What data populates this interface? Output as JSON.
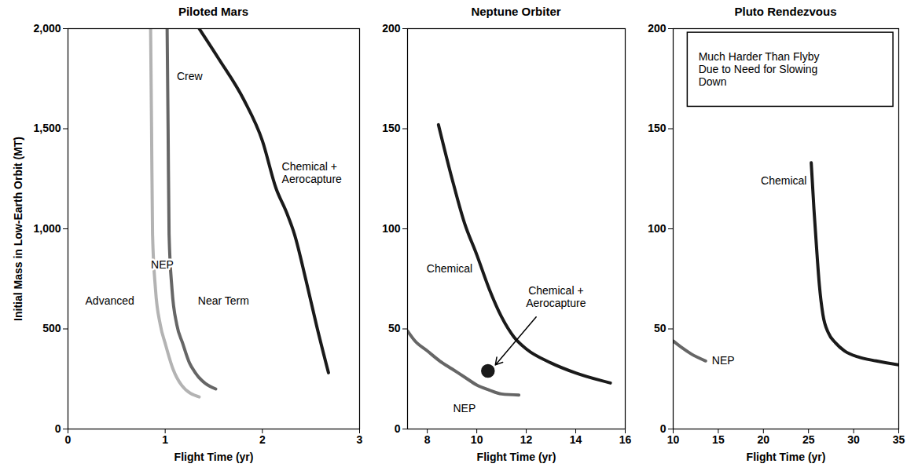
{
  "chart_data": [
    {
      "type": "line",
      "title": "Piloted Mars",
      "xlabel": "Flight Time (yr)",
      "ylabel": "Initial Mass in Low-Earth Orbit (MT)",
      "xlim": [
        0,
        3
      ],
      "xticks": [
        0,
        1,
        2,
        3
      ],
      "ylim": [
        0,
        2000
      ],
      "yticks": [
        0,
        500,
        {
          "value": 1000,
          "label": "1,000"
        },
        {
          "value": 1500,
          "label": "1,500"
        },
        {
          "value": 2000,
          "label": "2,000"
        }
      ],
      "series": [
        {
          "name": "Advanced",
          "color": "#b3b3b3",
          "x": [
            0.85,
            0.86,
            0.87,
            0.9,
            0.95,
            1.0,
            1.08,
            1.17,
            1.35
          ],
          "values": [
            2000,
            1500,
            973,
            700,
            520,
            428,
            300,
            218,
            160
          ]
        },
        {
          "name": "Near Term",
          "color": "#666666",
          "x": [
            1.02,
            1.03,
            1.04,
            1.07,
            1.12,
            1.18,
            1.25,
            1.31,
            1.52
          ],
          "values": [
            2000,
            1500,
            973,
            700,
            520,
            428,
            330,
            281,
            200
          ]
        },
        {
          "name": "Chemical + Aerocapture",
          "color": "#1a1a1a",
          "x": [
            1.35,
            1.55,
            1.81,
            2.0,
            2.14,
            2.25,
            2.33,
            2.45,
            2.56,
            2.68
          ],
          "values": [
            2000,
            1850,
            1644,
            1440,
            1203,
            1080,
            973,
            740,
            512,
            281
          ]
        }
      ],
      "annotations": [
        "NEP",
        "Crew"
      ]
    },
    {
      "type": "line",
      "title": "Neptune Orbiter",
      "xlabel": "Flight Time (yr)",
      "xlim": [
        7.2,
        16
      ],
      "xticks": [
        8,
        10,
        12,
        14,
        16
      ],
      "ylim": [
        0,
        200
      ],
      "yticks": [
        0,
        50,
        100,
        150,
        200
      ],
      "series": [
        {
          "name": "Chemical",
          "color": "#1a1a1a",
          "x": [
            8.45,
            9,
            9.5,
            10,
            10.5,
            11,
            11.5,
            12,
            13,
            14,
            15.4
          ],
          "values": [
            152,
            125,
            103,
            87,
            70,
            56,
            46,
            40,
            33,
            28,
            23
          ]
        },
        {
          "name": "NEP",
          "color": "#666666",
          "x": [
            7.2,
            7.5,
            8,
            8.5,
            9,
            9.5,
            10,
            10.5,
            11,
            11.7
          ],
          "values": [
            49,
            44,
            39,
            34,
            30,
            26,
            22,
            19.5,
            17.5,
            17
          ]
        },
        {
          "name": "Chemical + Aerocapture",
          "color": "#1a1a1a",
          "type": "scatter",
          "marker": "circle",
          "x": [
            10.45
          ],
          "values": [
            29
          ]
        }
      ]
    },
    {
      "type": "line",
      "title": "Pluto Rendezvous",
      "xlabel": "Flight Time (yr)",
      "xlim": [
        10,
        35
      ],
      "xticks": [
        10,
        15,
        20,
        25,
        30,
        35
      ],
      "ylim": [
        0,
        200
      ],
      "yticks": [
        0,
        50,
        100,
        150,
        200
      ],
      "series": [
        {
          "name": "Chemical",
          "color": "#1a1a1a",
          "x": [
            25.3,
            25.6,
            25.9,
            26.2,
            26.6,
            27.2,
            28,
            29,
            30.5,
            32.5,
            35
          ],
          "values": [
            133,
            110,
            90,
            72,
            57,
            48,
            43,
            39,
            36,
            34,
            32
          ]
        },
        {
          "name": "NEP",
          "color": "#666666",
          "x": [
            10,
            11,
            12,
            13.6
          ],
          "values": [
            44,
            40.5,
            37.5,
            34
          ]
        }
      ],
      "annotations": [
        "Much Harder Than Flyby Due to Need for Slowing Down"
      ]
    }
  ]
}
